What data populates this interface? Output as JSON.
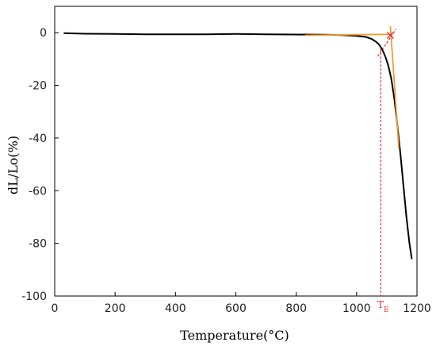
{
  "chart_data": {
    "type": "line",
    "xlabel": "Temperature(°C)",
    "ylabel": "dL/Lo(%)",
    "xlim": [
      0,
      1200
    ],
    "ylim": [
      -100,
      10
    ],
    "xticks": [
      0,
      200,
      400,
      600,
      800,
      1000,
      1200
    ],
    "yticks": [
      0,
      -20,
      -40,
      -60,
      -80,
      -100
    ],
    "grid": false,
    "legend": "none",
    "series": [
      {
        "color": "#000000",
        "x": [
          30,
          100,
          200,
          300,
          400,
          500,
          600,
          700,
          800,
          900,
          950,
          1000,
          1030,
          1050,
          1065,
          1075,
          1085,
          1095,
          1105,
          1115,
          1125,
          1135,
          1145,
          1155,
          1165,
          1175,
          1183
        ],
        "y": [
          -0.2,
          -0.4,
          -0.5,
          -0.6,
          -0.6,
          -0.6,
          -0.5,
          -0.6,
          -0.7,
          -0.8,
          -0.9,
          -1.2,
          -1.6,
          -2.4,
          -3.5,
          -4.6,
          -6.4,
          -9.0,
          -12.5,
          -17.5,
          -25,
          -35,
          -46,
          -58,
          -70,
          -80,
          -86
        ]
      }
    ],
    "annotations": {
      "tangent_lines": [
        {
          "color": "#f39c34",
          "x": [
            830,
            1115
          ],
          "y": [
            -1.0,
            -0.6
          ]
        },
        {
          "color": "#f39c34",
          "x": [
            1112,
            1140
          ],
          "y": [
            2.5,
            -44
          ]
        }
      ],
      "extrapolation_lines": [
        {
          "color": "#e83030",
          "x": [
            1070,
            1130
          ],
          "y": [
            -9,
            1.3
          ]
        }
      ],
      "intersection": {
        "x": 1112,
        "y": -1.0,
        "color": "#e83030"
      },
      "vertical_marker": {
        "x": 1080,
        "color": "#e83030",
        "label": "T",
        "label_sub": "E"
      }
    }
  }
}
